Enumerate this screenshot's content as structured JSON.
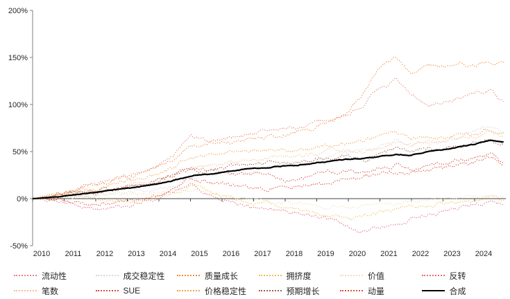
{
  "chart_data": {
    "type": "line",
    "title": "",
    "xlabel": "",
    "ylabel": "",
    "ylim": [
      -50,
      200
    ],
    "y_tick_labels": [
      "200%",
      "150%",
      "100%",
      "50%",
      "0%",
      "-50%"
    ],
    "y_tick_values": [
      200,
      150,
      100,
      50,
      0,
      -50
    ],
    "x_tick_labels": [
      "2010",
      "2011",
      "2012",
      "2013",
      "2014",
      "2015",
      "2016",
      "2017",
      "2018",
      "2019",
      "2020",
      "2021",
      "2022",
      "2023",
      "2024"
    ],
    "x_tick_values": [
      2010,
      2011,
      2012,
      2013,
      2014,
      2015,
      2016,
      2017,
      2018,
      2019,
      2020,
      2021,
      2022,
      2023,
      2024
    ],
    "grid": false,
    "legend_position": "bottom",
    "x": [
      2010,
      2010.5,
      2011,
      2011.5,
      2012,
      2012.5,
      2013,
      2013.5,
      2014,
      2014.5,
      2015,
      2015.5,
      2016,
      2016.5,
      2017,
      2017.5,
      2018,
      2018.5,
      2019,
      2019.5,
      2020,
      2020.5,
      2021,
      2021.5,
      2022,
      2022.5,
      2023,
      2023.5,
      2024,
      2024.5,
      2024.93
    ],
    "series": [
      {
        "name": "流动性",
        "color": "#E8837E",
        "style": "dotted",
        "values": [
          0,
          3,
          6,
          10,
          14,
          18,
          23,
          28,
          34,
          46,
          66,
          60,
          64,
          67,
          70,
          72,
          74,
          76,
          80,
          84,
          90,
          101,
          117,
          125,
          108,
          99,
          103,
          106,
          112,
          114,
          103
        ]
      },
      {
        "name": "成交稳定性",
        "color": "#D8D8D8",
        "style": "dotted",
        "values": [
          0,
          1,
          2,
          3,
          4,
          5,
          6,
          8,
          10,
          14,
          20,
          24,
          26,
          28,
          30,
          32,
          34,
          36,
          40,
          45,
          50,
          54,
          57,
          62,
          58,
          63,
          60,
          66,
          72,
          76,
          71
        ]
      },
      {
        "name": "质量成长",
        "color": "#F08B3C",
        "style": "dotted",
        "values": [
          0,
          3,
          7,
          11,
          15,
          19,
          24,
          29,
          35,
          44,
          55,
          58,
          60,
          62,
          64,
          66,
          68,
          72,
          76,
          81,
          93,
          113,
          140,
          150,
          130,
          143,
          141,
          145,
          141,
          146,
          143
        ]
      },
      {
        "name": "拥挤度",
        "color": "#EFBF52",
        "style": "dotted",
        "values": [
          0,
          2,
          3,
          2,
          0,
          -2,
          -3,
          -2,
          1,
          6,
          16,
          8,
          3,
          -1,
          -4,
          -6,
          -9,
          -13,
          -16,
          -19,
          -21,
          -17,
          -14,
          -12,
          -10,
          -7,
          -5,
          -3,
          -1,
          2,
          -3
        ]
      },
      {
        "name": "价值",
        "color": "#F3DEB8",
        "style": "dotted",
        "values": [
          0,
          1,
          2,
          3,
          4,
          4,
          5,
          5,
          6,
          9,
          11,
          7,
          3,
          0,
          -2,
          -3,
          -4,
          -5,
          -7,
          -9,
          -10,
          -7,
          -5,
          -8,
          -4,
          -2,
          0,
          1,
          2,
          4,
          1
        ]
      },
      {
        "name": "反转",
        "color": "#E56A7B",
        "style": "dotted",
        "values": [
          0,
          -2,
          -5,
          -8,
          -10,
          -8,
          -6,
          -3,
          0,
          6,
          16,
          8,
          0,
          -5,
          -9,
          -11,
          -13,
          -16,
          -19,
          -23,
          -30,
          -36,
          -30,
          -26,
          -22,
          -18,
          -15,
          -11,
          -7,
          -2,
          -5
        ]
      },
      {
        "name": "笔数",
        "color": "#F5BE8E",
        "style": "dotted",
        "values": [
          0,
          2,
          4,
          6,
          8,
          10,
          13,
          16,
          19,
          25,
          33,
          35,
          37,
          39,
          41,
          43,
          45,
          46,
          48,
          50,
          52,
          50,
          54,
          58,
          56,
          60,
          62,
          64,
          66,
          70,
          67
        ]
      },
      {
        "name": "SUE",
        "color": "#D14B42",
        "style": "dotted",
        "values": [
          0,
          1,
          3,
          5,
          7,
          9,
          12,
          15,
          18,
          25,
          34,
          30,
          28,
          26,
          25,
          23,
          21,
          23,
          26,
          28,
          30,
          28,
          32,
          36,
          33,
          36,
          39,
          42,
          45,
          48,
          38
        ]
      },
      {
        "name": "价格稳定性",
        "color": "#F0A14B",
        "style": "dotted",
        "values": [
          0,
          3,
          6,
          9,
          12,
          15,
          18,
          22,
          26,
          33,
          43,
          46,
          48,
          50,
          52,
          50,
          49,
          51,
          54,
          57,
          60,
          62,
          66,
          70,
          64,
          66,
          64,
          68,
          67,
          72,
          70
        ]
      },
      {
        "name": "预期增长",
        "color": "#A05A4C",
        "style": "dotted",
        "values": [
          0,
          2,
          4,
          6,
          8,
          10,
          13,
          16,
          20,
          26,
          33,
          30,
          32,
          34,
          36,
          38,
          37,
          39,
          41,
          43,
          45,
          41,
          48,
          52,
          50,
          54,
          52,
          56,
          58,
          62,
          58
        ]
      },
      {
        "name": "动量",
        "color": "#E04C3A",
        "style": "dotted",
        "values": [
          0,
          -1,
          -3,
          -5,
          -6,
          -4,
          -2,
          1,
          4,
          11,
          22,
          18,
          16,
          14,
          12,
          11,
          13,
          14,
          16,
          18,
          20,
          24,
          28,
          30,
          26,
          30,
          32,
          35,
          38,
          44,
          34
        ]
      },
      {
        "name": "合成",
        "color": "#000000",
        "style": "solid",
        "values": [
          0,
          1,
          3,
          5,
          7,
          9,
          11,
          13,
          16,
          20,
          24,
          26,
          28,
          30,
          32,
          33,
          35,
          36,
          38,
          40,
          42,
          43,
          45,
          47,
          46,
          50,
          52,
          55,
          58,
          62,
          60
        ]
      }
    ]
  },
  "axes_style": {
    "axis_color": "#7f7f7f",
    "zero_line_color": "#404040",
    "tick_label_color": "#262626"
  }
}
